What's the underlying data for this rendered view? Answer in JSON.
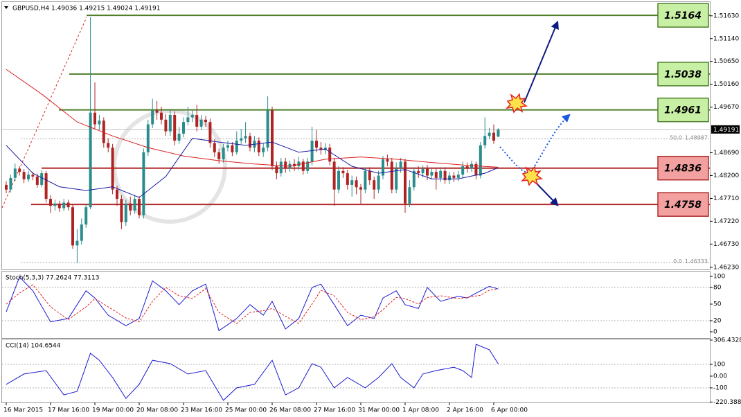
{
  "chart_data": [
    {
      "type": "candlestick",
      "header": "GBPUSD,H4  1.49036 1.49215 1.49024 1.49191",
      "categories": [
        "16 Mar 2015",
        null,
        null,
        null,
        null,
        null,
        null,
        null,
        null,
        null,
        "17 Mar 16:00",
        null,
        null,
        null,
        null,
        null,
        null,
        null,
        null,
        null,
        "19 Mar 00:00",
        null,
        null,
        null,
        null,
        null,
        null,
        null,
        null,
        null,
        "20 Mar 08:00",
        null,
        null,
        null,
        null,
        null,
        null,
        null,
        null,
        null,
        "23 Mar 16:00",
        null,
        null,
        null,
        null,
        null,
        null,
        null,
        null,
        null,
        "25 Mar 00:00",
        null,
        null,
        null,
        null,
        null,
        null,
        null,
        null,
        null,
        "26 Mar 08:00",
        null,
        null,
        null,
        null,
        null,
        null,
        null,
        null,
        null,
        "27 Mar 16:00",
        null,
        null,
        null,
        null,
        null,
        null,
        null,
        null,
        null,
        "31 Mar 00:00",
        null,
        null,
        null,
        null,
        null,
        null,
        null,
        null,
        null,
        "1 Apr 08:00",
        null,
        null,
        null,
        null,
        null,
        null,
        null,
        null,
        null,
        "2 Apr 16:00",
        null,
        null,
        null,
        null,
        null,
        null,
        null,
        null,
        null,
        "6 Apr 00:00",
        null
      ],
      "open": [
        1.48,
        1.479,
        1.4815,
        1.4835,
        1.4828,
        1.4812,
        1.4822,
        1.4818,
        1.48,
        1.4825,
        1.477,
        1.4755,
        1.476,
        1.475,
        1.4762,
        1.4752,
        1.467,
        1.468,
        1.4715,
        1.4752,
        1.4955,
        1.493,
        1.4938,
        1.489,
        1.488,
        1.479,
        1.477,
        1.472,
        1.476,
        1.4745,
        1.477,
        1.4735,
        1.487,
        1.493,
        1.496,
        1.4955,
        1.494,
        1.4915,
        1.495,
        1.4895,
        1.491,
        1.4935,
        1.4945,
        1.495,
        1.4925,
        1.494,
        1.4935,
        1.489,
        1.487,
        1.4855,
        1.488,
        1.4885,
        1.487,
        1.4895,
        1.49,
        1.4905,
        1.488,
        1.4895,
        1.487,
        1.488,
        1.496,
        1.484,
        1.4825,
        1.485,
        1.4835,
        1.4845,
        1.484,
        1.485,
        1.483,
        1.485,
        1.4895,
        1.488,
        1.4875,
        1.488,
        1.485,
        1.479,
        1.483,
        1.4825,
        1.48,
        1.481,
        1.4795,
        1.479,
        1.483,
        1.481,
        1.479,
        1.482,
        1.4855,
        1.485,
        1.479,
        1.4835,
        1.485,
        1.476,
        1.4795,
        1.483,
        1.4825,
        1.4835,
        1.482,
        1.4828,
        1.4815,
        1.483,
        1.481,
        1.482,
        1.4815,
        1.4822,
        1.484,
        1.4835,
        1.4845,
        1.482,
        1.4885,
        1.4905,
        1.4912,
        1.49036
      ],
      "high": [
        1.4808,
        1.4822,
        1.4846,
        1.484,
        1.4834,
        1.483,
        1.4828,
        1.4824,
        1.4832,
        1.483,
        1.4778,
        1.4768,
        1.4766,
        1.477,
        1.4768,
        1.4758,
        1.4705,
        1.4728,
        1.476,
        1.516,
        1.502,
        1.495,
        1.4945,
        1.49,
        1.4888,
        1.4798,
        1.4778,
        1.4768,
        1.4775,
        1.4778,
        1.4776,
        1.4878,
        1.494,
        1.4985,
        1.498,
        1.4968,
        1.4952,
        1.4962,
        1.4958,
        1.4925,
        1.4945,
        1.4968,
        1.496,
        1.4972,
        1.495,
        1.4948,
        1.4942,
        1.4898,
        1.4878,
        1.4888,
        1.4895,
        1.4892,
        1.4915,
        1.492,
        1.4935,
        1.4912,
        1.4905,
        1.4902,
        1.489,
        1.499,
        1.4968,
        1.485,
        1.4858,
        1.4858,
        1.4852,
        1.4855,
        1.486,
        1.4856,
        1.4858,
        1.4925,
        1.4918,
        1.4892,
        1.489,
        1.4888,
        1.4858,
        1.484,
        1.4838,
        1.4832,
        1.482,
        1.4818,
        1.4802,
        1.4838,
        1.4838,
        1.4818,
        1.483,
        1.4862,
        1.4865,
        1.4858,
        1.4848,
        1.4858,
        1.4856,
        1.481,
        1.4838,
        1.484,
        1.4842,
        1.4843,
        1.4836,
        1.4835,
        1.4838,
        1.4838,
        1.4828,
        1.4828,
        1.483,
        1.485,
        1.4848,
        1.4852,
        1.485,
        1.4892,
        1.4945,
        1.4922,
        1.493,
        1.49215
      ],
      "low": [
        1.4782,
        1.4784,
        1.4808,
        1.482,
        1.4804,
        1.4806,
        1.481,
        1.4794,
        1.4795,
        1.4762,
        1.474,
        1.4745,
        1.4742,
        1.4744,
        1.4745,
        1.4663,
        1.4632,
        1.4672,
        1.4708,
        1.4748,
        1.492,
        1.4918,
        1.488,
        1.487,
        1.478,
        1.4755,
        1.4705,
        1.4712,
        1.4735,
        1.4738,
        1.4728,
        1.4728,
        1.4862,
        1.4922,
        1.494,
        1.493,
        1.4905,
        1.4905,
        1.4885,
        1.4888,
        1.4902,
        1.4928,
        1.4935,
        1.4915,
        1.4918,
        1.4925,
        1.488,
        1.486,
        1.4845,
        1.4848,
        1.4872,
        1.4862,
        1.4865,
        1.4888,
        1.489,
        1.4872,
        1.487,
        1.4862,
        1.486,
        1.4872,
        1.4832,
        1.4812,
        1.4818,
        1.4826,
        1.4828,
        1.483,
        1.4832,
        1.4822,
        1.4824,
        1.4842,
        1.487,
        1.4865,
        1.4866,
        1.4842,
        1.4755,
        1.4782,
        1.4815,
        1.479,
        1.4775,
        1.478,
        1.476,
        1.4782,
        1.48,
        1.477,
        1.4782,
        1.4812,
        1.484,
        1.4782,
        1.4782,
        1.4826,
        1.474,
        1.4752,
        1.4788,
        1.4815,
        1.4816,
        1.481,
        1.4812,
        1.479,
        1.4806,
        1.4802,
        1.4802,
        1.4806,
        1.4808,
        1.4814,
        1.4826,
        1.4828,
        1.4812,
        1.4814,
        1.4878,
        1.4898,
        1.4888,
        1.49024
      ],
      "close": [
        1.479,
        1.4815,
        1.4835,
        1.4828,
        1.4812,
        1.4822,
        1.4818,
        1.48,
        1.4825,
        1.477,
        1.4755,
        1.476,
        1.475,
        1.4762,
        1.4752,
        1.467,
        1.468,
        1.4715,
        1.4752,
        1.4955,
        1.493,
        1.4938,
        1.489,
        1.488,
        1.479,
        1.477,
        1.472,
        1.476,
        1.4745,
        1.477,
        1.4735,
        1.487,
        1.493,
        1.496,
        1.4955,
        1.494,
        1.4915,
        1.495,
        1.4895,
        1.491,
        1.4935,
        1.4945,
        1.495,
        1.4925,
        1.494,
        1.4935,
        1.489,
        1.487,
        1.4855,
        1.488,
        1.4885,
        1.487,
        1.4895,
        1.49,
        1.4905,
        1.488,
        1.4895,
        1.487,
        1.488,
        1.496,
        1.484,
        1.4825,
        1.485,
        1.4835,
        1.4845,
        1.484,
        1.485,
        1.483,
        1.485,
        1.4895,
        1.488,
        1.4875,
        1.488,
        1.485,
        1.479,
        1.483,
        1.4825,
        1.48,
        1.481,
        1.4795,
        1.479,
        1.483,
        1.481,
        1.479,
        1.482,
        1.4855,
        1.485,
        1.479,
        1.4835,
        1.485,
        1.476,
        1.4795,
        1.483,
        1.4825,
        1.4835,
        1.482,
        1.4828,
        1.4815,
        1.483,
        1.481,
        1.482,
        1.4815,
        1.4822,
        1.484,
        1.4835,
        1.4845,
        1.482,
        1.4885,
        1.4905,
        1.4912,
        1.4895,
        1.49191
      ],
      "up_color": "#2a8c8c",
      "down_color": "#b02323",
      "ylim": [
        1.4617,
        1.5185
      ],
      "yticks": [
        {
          "value": 1.5163,
          "label": "1.51630"
        },
        {
          "value": 1.5114,
          "label": "1.51140"
        },
        {
          "value": 1.5065,
          "label": "1.50650"
        },
        {
          "value": 1.5016,
          "label": "1.50160"
        },
        {
          "value": 1.4967,
          "label": "1.49670"
        },
        {
          "value": 1.4869,
          "label": "1.48690"
        },
        {
          "value": 1.482,
          "label": "1.48200"
        },
        {
          "value": 1.4771,
          "label": "1.47710"
        },
        {
          "value": 1.4722,
          "label": "1.47220"
        },
        {
          "value": 1.4673,
          "label": "1.46730"
        },
        {
          "value": 1.4623,
          "label": "1.46230"
        }
      ],
      "grid": false,
      "current_price": 1.49191,
      "levels": [
        {
          "value": 1.5164,
          "color": "#4e7d2a",
          "fill": "#c8f0a4"
        },
        {
          "value": 1.5038,
          "color": "#4e7d2a",
          "fill": "#c8f0a4"
        },
        {
          "value": 1.4961,
          "color": "#4e7d2a",
          "fill": "#c8f0a4"
        },
        {
          "value": 1.4836,
          "color": "#b02a2a",
          "fill": "#f2a0a0"
        },
        {
          "value": 1.4758,
          "color": "#b02a2a",
          "fill": "#f2a0a0"
        }
      ],
      "fib_levels": [
        {
          "label": "50.0",
          "value": 1.48987
        },
        {
          "label": "0.0",
          "value": 1.46333
        }
      ],
      "lines": [
        {
          "color": "#d82020",
          "x": [
            0,
            8,
            16,
            24,
            32,
            40,
            48,
            56,
            64,
            72,
            80,
            88,
            96,
            104,
            111
          ],
          "values": [
            1.5048,
            1.4995,
            1.4935,
            1.4905,
            1.488,
            1.4862,
            1.4852,
            1.4845,
            1.484,
            1.4855,
            1.486,
            1.4855,
            1.4848,
            1.4842,
            1.4838
          ]
        },
        {
          "color": "#1a1aa0",
          "x": [
            0,
            6,
            12,
            18,
            24,
            30,
            36,
            42,
            48,
            54,
            60,
            66,
            72,
            78,
            84,
            90,
            96,
            102,
            108,
            111
          ],
          "values": [
            1.4885,
            1.4825,
            1.4796,
            1.4788,
            1.4796,
            1.4773,
            1.4818,
            1.49,
            1.4892,
            1.4885,
            1.4892,
            1.487,
            1.4877,
            1.484,
            1.4825,
            1.4833,
            1.4813,
            1.4813,
            1.4825,
            1.4837
          ]
        }
      ]
    },
    {
      "type": "line",
      "title": "Stoch(5,3,3) 77.2624 77.3113",
      "ylim": [
        -12.5,
        108.75
      ],
      "yticks": [
        100,
        80,
        50,
        20,
        0
      ],
      "levels": [
        80,
        20
      ],
      "series": [
        {
          "color": "#1a1ad0",
          "dash": false,
          "x": [
            0,
            3,
            6,
            10,
            14,
            18,
            20,
            23,
            27,
            30,
            33,
            36,
            39,
            42,
            45,
            48,
            52,
            55,
            58,
            60,
            63,
            66,
            69,
            71,
            74,
            77,
            80,
            83,
            85,
            88,
            90,
            93,
            95,
            98,
            102,
            104,
            107,
            109,
            111
          ],
          "values": [
            36,
            99,
            74,
            18,
            24,
            74,
            61,
            30,
            11,
            24,
            92,
            74,
            49,
            74,
            86,
            2,
            24,
            49,
            30,
            55,
            5,
            24,
            80,
            86,
            49,
            11,
            30,
            24,
            61,
            74,
            49,
            42,
            80,
            55,
            64,
            61,
            74,
            82,
            77.2624
          ]
        },
        {
          "color": "#e02020",
          "dash": true,
          "x": [
            0,
            3,
            6,
            10,
            14,
            18,
            20,
            23,
            27,
            30,
            33,
            36,
            39,
            42,
            45,
            48,
            52,
            55,
            58,
            60,
            63,
            66,
            69,
            71,
            74,
            77,
            80,
            83,
            85,
            88,
            90,
            93,
            95,
            98,
            102,
            104,
            107,
            109,
            111
          ],
          "values": [
            50,
            70,
            85,
            45,
            22,
            45,
            60,
            45,
            25,
            18,
            55,
            80,
            65,
            60,
            78,
            35,
            15,
            35,
            38,
            42,
            28,
            15,
            50,
            75,
            65,
            35,
            22,
            27,
            40,
            62,
            60,
            50,
            62,
            65,
            60,
            62,
            66,
            75,
            77.3113
          ]
        }
      ]
    },
    {
      "type": "line",
      "title": "CCI(14) 104.6544",
      "ylim": [
        -224,
        312
      ],
      "yticks": [
        306.4328,
        100,
        {
          "value": 0,
          "label": "0.00"
        },
        -100,
        -220.3881
      ],
      "levels": [
        100,
        -100
      ],
      "series": [
        {
          "color": "#1a1ad0",
          "dash": false,
          "x": [
            0,
            4,
            9,
            13,
            16,
            19,
            21,
            24,
            27,
            30,
            33,
            37,
            41,
            45,
            49,
            52,
            56,
            60,
            63,
            66,
            69,
            71,
            74,
            77,
            81,
            84,
            87,
            89,
            92,
            94,
            97,
            101,
            103,
            105,
            106,
            109,
            111
          ],
          "values": [
            -70,
            18,
            47,
            -160,
            -130,
            194,
            135,
            -12,
            -190,
            -70,
            135,
            106,
            18,
            47,
            -206,
            -100,
            -70,
            135,
            -160,
            -100,
            106,
            76,
            -100,
            -12,
            -100,
            -12,
            106,
            -12,
            -100,
            18,
            47,
            76,
            47,
            -12,
            270,
            224,
            104.6544
          ]
        }
      ]
    }
  ]
}
